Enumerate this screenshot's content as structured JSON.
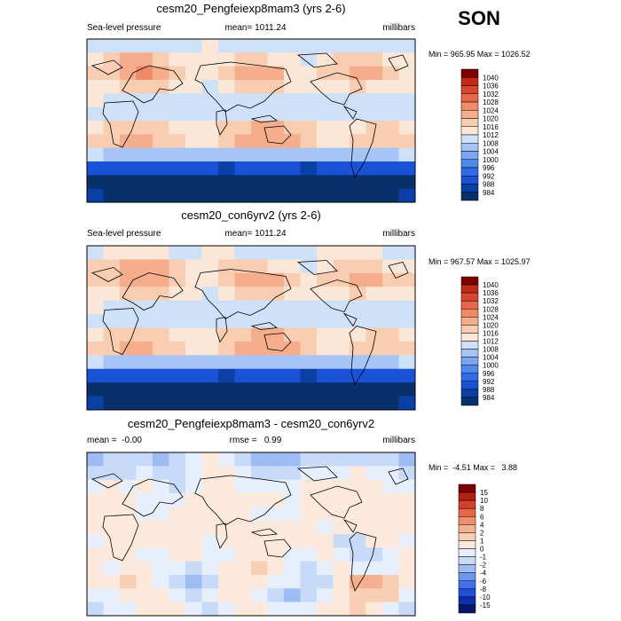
{
  "season": "SON",
  "colors": {
    "abs_scale": [
      "#08306b",
      "#0a3fa6",
      "#1a52d6",
      "#2f6be8",
      "#5088ee",
      "#7aa6f2",
      "#a6c4f5",
      "#cfe0f9",
      "#fbe7d8",
      "#f8cdb2",
      "#f6ad8c",
      "#f18a68",
      "#e8664a",
      "#d94630",
      "#c22a18",
      "#7f0000"
    ],
    "diff_scale": [
      "#08176b",
      "#0a2fb0",
      "#1f4fd6",
      "#3f72e6",
      "#6d96ee",
      "#9dbcf3",
      "#c7daf8",
      "#e6effb",
      "#fde9dc",
      "#f8cfb4",
      "#f4b090",
      "#f08d6a",
      "#e56847",
      "#d4422c",
      "#b42012",
      "#7f0000"
    ]
  },
  "chart_data": [
    {
      "type": "heatmap",
      "panel": "top",
      "title": "cesm20_Pengfeiexp8mam3 (yrs 2-6)",
      "left_label": "Sea-level pressure",
      "center_label": "mean= 1011.24",
      "right_label": "millibars",
      "minmax_label": "Min = 965.95 Max = 1026.52",
      "min": 965.95,
      "max": 1026.52,
      "mean": 1011.24,
      "units": "millibars",
      "colorbar_levels": [
        "1040",
        "1036",
        "1032",
        "1028",
        "1024",
        "1020",
        "1016",
        "1012",
        "1008",
        "1004",
        "1000",
        "996",
        "992",
        "988",
        "984"
      ],
      "field": [
        [
          1010,
          1009,
          1008,
          1008,
          1009,
          1010,
          1011,
          1012,
          1011,
          1010,
          1009,
          1008,
          1008,
          1009,
          1010,
          1010,
          1011,
          1010,
          1009,
          1008
        ],
        [
          1014,
          1016,
          1020,
          1022,
          1018,
          1015,
          1013,
          1013,
          1015,
          1016,
          1016,
          1014,
          1012,
          1010,
          1013,
          1017,
          1019,
          1018,
          1014,
          1012
        ],
        [
          1017,
          1019,
          1022,
          1024,
          1021,
          1017,
          1014,
          1014,
          1017,
          1021,
          1022,
          1020,
          1015,
          1013,
          1016,
          1019,
          1021,
          1020,
          1017,
          1015
        ],
        [
          1014,
          1015,
          1016,
          1017,
          1016,
          1014,
          1012,
          1011,
          1013,
          1016,
          1018,
          1017,
          1014,
          1012,
          1014,
          1015,
          1016,
          1015,
          1014,
          1013
        ],
        [
          1012,
          1011,
          1010,
          1010,
          1009,
          1009,
          1008,
          1008,
          1009,
          1010,
          1011,
          1011,
          1010,
          1009,
          1010,
          1011,
          1011,
          1011,
          1011,
          1011
        ],
        [
          1011,
          1010,
          1010,
          1009,
          1009,
          1008,
          1008,
          1008,
          1009,
          1009,
          1010,
          1010,
          1010,
          1010,
          1009,
          1009,
          1010,
          1010,
          1010,
          1011
        ],
        [
          1015,
          1017,
          1019,
          1019,
          1016,
          1014,
          1013,
          1013,
          1016,
          1019,
          1021,
          1021,
          1019,
          1016,
          1013,
          1013,
          1015,
          1017,
          1017,
          1015
        ],
        [
          1016,
          1019,
          1021,
          1021,
          1018,
          1016,
          1015,
          1015,
          1018,
          1021,
          1023,
          1022,
          1020,
          1017,
          1015,
          1015,
          1017,
          1019,
          1019,
          1017
        ],
        [
          1008,
          1007,
          1006,
          1005,
          1005,
          1005,
          1004,
          1004,
          1004,
          1005,
          1006,
          1006,
          1006,
          1005,
          1005,
          1005,
          1006,
          1007,
          1007,
          1008
        ],
        [
          990,
          989,
          988,
          988,
          989,
          990,
          989,
          988,
          987,
          988,
          989,
          989,
          988,
          987,
          988,
          989,
          990,
          990,
          989,
          990
        ],
        [
          980,
          978,
          976,
          975,
          976,
          978,
          977,
          975,
          974,
          975,
          977,
          977,
          975,
          974,
          975,
          977,
          978,
          978,
          977,
          980
        ],
        [
          984,
          982,
          980,
          979,
          980,
          982,
          981,
          979,
          978,
          979,
          981,
          981,
          979,
          978,
          979,
          981,
          982,
          982,
          981,
          984
        ]
      ]
    },
    {
      "type": "heatmap",
      "panel": "middle",
      "title": "cesm20_con6yrv2 (yrs 2-6)",
      "left_label": "Sea-level pressure",
      "center_label": "mean= 1011.24",
      "right_label": "millibars",
      "minmax_label": "Min = 967.57 Max = 1025.97",
      "min": 967.57,
      "max": 1025.97,
      "mean": 1011.24,
      "units": "millibars",
      "colorbar_levels": [
        "1040",
        "1036",
        "1032",
        "1028",
        "1024",
        "1020",
        "1016",
        "1012",
        "1008",
        "1004",
        "1000",
        "996",
        "992",
        "988",
        "984"
      ],
      "field": [
        [
          1011,
          1012,
          1013,
          1013,
          1012,
          1011,
          1011,
          1012,
          1012,
          1011,
          1011,
          1011,
          1011,
          1011,
          1012,
          1012,
          1012,
          1012,
          1011,
          1011
        ],
        [
          1016,
          1018,
          1021,
          1022,
          1020,
          1016,
          1013,
          1013,
          1016,
          1018,
          1017,
          1014,
          1012,
          1011,
          1014,
          1017,
          1019,
          1018,
          1015,
          1013
        ],
        [
          1018,
          1019,
          1021,
          1023,
          1022,
          1018,
          1014,
          1014,
          1018,
          1022,
          1023,
          1021,
          1016,
          1013,
          1016,
          1019,
          1021,
          1020,
          1018,
          1016
        ],
        [
          1014,
          1015,
          1016,
          1017,
          1016,
          1014,
          1012,
          1011,
          1013,
          1016,
          1018,
          1017,
          1014,
          1012,
          1014,
          1015,
          1016,
          1015,
          1014,
          1013
        ],
        [
          1012,
          1011,
          1010,
          1010,
          1009,
          1009,
          1008,
          1008,
          1009,
          1010,
          1011,
          1011,
          1010,
          1009,
          1010,
          1011,
          1011,
          1011,
          1011,
          1011
        ],
        [
          1011,
          1010,
          1010,
          1009,
          1009,
          1008,
          1008,
          1008,
          1009,
          1009,
          1010,
          1010,
          1010,
          1010,
          1009,
          1009,
          1010,
          1010,
          1010,
          1011
        ],
        [
          1015,
          1017,
          1019,
          1019,
          1016,
          1014,
          1013,
          1013,
          1016,
          1019,
          1021,
          1021,
          1019,
          1016,
          1013,
          1013,
          1015,
          1017,
          1017,
          1015
        ],
        [
          1016,
          1019,
          1021,
          1021,
          1018,
          1016,
          1015,
          1015,
          1018,
          1021,
          1023,
          1022,
          1020,
          1017,
          1015,
          1015,
          1017,
          1019,
          1019,
          1017
        ],
        [
          1008,
          1007,
          1006,
          1005,
          1005,
          1005,
          1004,
          1004,
          1004,
          1005,
          1006,
          1006,
          1006,
          1005,
          1005,
          1005,
          1006,
          1007,
          1007,
          1008
        ],
        [
          990,
          989,
          988,
          988,
          989,
          990,
          989,
          988,
          987,
          988,
          989,
          989,
          988,
          987,
          988,
          989,
          990,
          990,
          989,
          990
        ],
        [
          980,
          978,
          976,
          975,
          976,
          978,
          977,
          975,
          974,
          975,
          977,
          977,
          975,
          974,
          975,
          977,
          978,
          978,
          977,
          980
        ],
        [
          984,
          982,
          980,
          979,
          980,
          982,
          981,
          979,
          978,
          979,
          981,
          981,
          979,
          978,
          979,
          981,
          982,
          982,
          981,
          984
        ]
      ]
    },
    {
      "type": "heatmap",
      "panel": "bottom",
      "title": "cesm20_Pengfeiexp8mam3 - cesm20_con6yrv2",
      "left_label": "mean =  -0.00",
      "center_label": "rmse =   0.99",
      "right_label": "millibars",
      "minmax_label": "Min =  -4.51 Max =   3.88",
      "min": -4.51,
      "max": 3.88,
      "mean": -0.0,
      "rmse": 0.99,
      "units": "millibars",
      "colorbar_levels": [
        "15",
        "10",
        "8",
        "6",
        "4",
        "2",
        "1",
        "0",
        "-1",
        "-2",
        "-4",
        "-6",
        "-8",
        "-10",
        "-15"
      ],
      "field": [
        [
          -2.5,
          -1.5,
          -1,
          -1.5,
          -2,
          -1,
          0,
          0.5,
          -0.5,
          -1,
          -2,
          -3,
          -2.5,
          -1.5,
          -1,
          -1.5,
          -1,
          -1.5,
          -1.5,
          -2.5
        ],
        [
          -1.5,
          -1,
          -1.5,
          -0.5,
          -1,
          -1,
          0,
          0.5,
          0.5,
          -0.5,
          -1,
          -1.5,
          -1,
          -0.5,
          -0.5,
          0,
          0.5,
          0,
          -0.5,
          -1.5
        ],
        [
          -0.5,
          0.5,
          -0.5,
          0.5,
          -0.5,
          -1,
          0,
          0.5,
          0.5,
          0,
          -0.5,
          -0.5,
          0,
          0.5,
          0.5,
          0.5,
          0.5,
          0.5,
          0,
          -0.5
        ],
        [
          0.5,
          0.5,
          0.5,
          -0.5,
          -0.5,
          -0.5,
          0.5,
          0.5,
          0.5,
          0.5,
          0.5,
          0.5,
          0,
          0.5,
          0.5,
          0.5,
          0.5,
          0.5,
          0.5,
          0.5
        ],
        [
          0.5,
          0.5,
          0.5,
          0,
          -0.5,
          0.5,
          0.5,
          0.5,
          0.5,
          0.5,
          0,
          -0.5,
          -0.5,
          0.5,
          0.5,
          0.5,
          0.5,
          0.5,
          0.5,
          0.5
        ],
        [
          0.5,
          0.5,
          0.5,
          0.5,
          0.5,
          0.5,
          0.5,
          0.5,
          0.5,
          0.5,
          0.5,
          0.5,
          0.5,
          0.5,
          -0.5,
          0.5,
          0.5,
          0.5,
          0.5,
          0.5
        ],
        [
          -0.5,
          0.5,
          0.5,
          0.5,
          0.5,
          0.5,
          0.5,
          -0.5,
          0.5,
          0.5,
          0.5,
          0.5,
          0.5,
          0.5,
          0.5,
          -1.5,
          -1,
          0.5,
          0.5,
          -0.5
        ],
        [
          0.5,
          0.5,
          0.5,
          -0.5,
          -0.5,
          0.5,
          0.5,
          -0.5,
          -0.5,
          0.5,
          1,
          0.5,
          -0.5,
          -0.5,
          0.5,
          -0.5,
          -1.5,
          -1,
          -0.5,
          0.5
        ],
        [
          0.5,
          -0.5,
          0.5,
          0.5,
          -0.5,
          -0.5,
          -1,
          -0.5,
          0.5,
          1,
          1.5,
          1,
          -0.5,
          -1,
          -0.5,
          0.5,
          -0.5,
          -0.5,
          -0.5,
          0.5
        ],
        [
          1,
          1,
          1.5,
          0.5,
          -0.5,
          -1.5,
          -2,
          -1.5,
          0.5,
          0.5,
          0.5,
          -0.5,
          -0.5,
          -1,
          -1.5,
          0.5,
          2.5,
          3,
          2,
          1
        ],
        [
          -0.5,
          -0.5,
          0.5,
          0.5,
          0.5,
          -0.5,
          -1,
          -0.5,
          0.5,
          0.5,
          -0.5,
          -1.5,
          -2,
          -1,
          -0.5,
          0.5,
          1.5,
          2,
          1.5,
          -0.5
        ],
        [
          -1,
          -0.5,
          -0.5,
          0.5,
          0.5,
          0.5,
          -0.5,
          -1,
          -0.5,
          0.5,
          0.5,
          -0.5,
          -0.5,
          -0.5,
          0.5,
          1,
          1.5,
          0.5,
          -0.5,
          -1
        ]
      ]
    }
  ]
}
